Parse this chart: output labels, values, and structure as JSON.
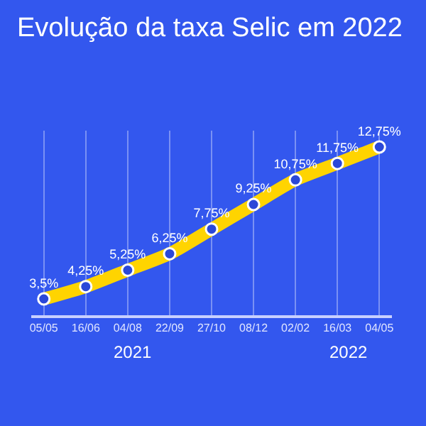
{
  "chart_data": {
    "type": "line",
    "title": "Evolução da taxa Selic em 2022",
    "categories": [
      "05/05",
      "16/06",
      "04/08",
      "22/09",
      "27/10",
      "08/12",
      "02/02",
      "16/03",
      "04/05"
    ],
    "values": [
      3.5,
      4.25,
      5.25,
      6.25,
      7.75,
      9.25,
      10.75,
      11.75,
      12.75
    ],
    "value_labels": [
      "3,5%",
      "4,25%",
      "5,25%",
      "6,25%",
      "7,75%",
      "9,25%",
      "10,75%",
      "11,75%",
      "12,75%"
    ],
    "color": "#ffd400",
    "marker": "circle",
    "line_style": "solid",
    "grid": "x",
    "tick_labels": "x",
    "annotations": [
      "2021",
      "2022"
    ]
  }
}
